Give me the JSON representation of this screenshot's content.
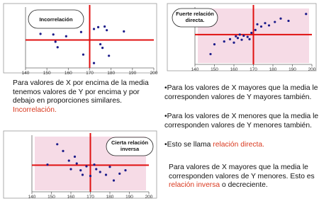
{
  "chart_data": [
    {
      "type": "scatter",
      "label": "Incorrelación",
      "xlim": [
        140,
        200
      ],
      "ylim": [
        0,
        100
      ],
      "xticks": [
        140,
        150,
        160,
        170,
        180,
        190,
        200
      ],
      "vline": 170,
      "hline": 46,
      "color": "#1c1c8a",
      "x": [
        147,
        153,
        154,
        155,
        159,
        166,
        172,
        174,
        177,
        178,
        175,
        176,
        179,
        167,
        172,
        186
      ],
      "y": [
        56,
        55,
        43,
        34,
        52,
        59,
        64,
        67,
        68,
        62,
        39,
        33,
        20,
        22,
        8,
        60
      ]
    },
    {
      "type": "scatter",
      "label": "Fuerte relación directa.",
      "xlim": [
        140,
        200
      ],
      "ylim": [
        0,
        100
      ],
      "xticks": [
        140,
        150,
        160,
        170,
        180,
        190,
        200
      ],
      "vline": 170,
      "hline": 52,
      "color": "#1c1c8a",
      "x": [
        148,
        150,
        155,
        158,
        160,
        161,
        162,
        163,
        164,
        165,
        167,
        168,
        169,
        171,
        172,
        174,
        176,
        178,
        181,
        184,
        188,
        197
      ],
      "y": [
        18,
        35,
        40,
        44,
        38,
        49,
        46,
        52,
        43,
        50,
        48,
        44,
        55,
        60,
        70,
        66,
        72,
        68,
        74,
        80,
        76,
        88
      ]
    },
    {
      "type": "scatter",
      "label": "Cierta relación inversa",
      "xlim": [
        140,
        200
      ],
      "ylim": [
        0,
        100
      ],
      "xticks": [
        140,
        150,
        160,
        170,
        180,
        190,
        200
      ],
      "vline": 170,
      "hline": 47,
      "color": "#1c1c8a",
      "x": [
        148,
        153,
        156,
        159,
        160,
        162,
        163,
        165,
        166,
        168,
        170,
        172,
        173,
        175,
        178,
        180,
        182,
        185,
        188
      ],
      "y": [
        48,
        84,
        72,
        55,
        40,
        62,
        50,
        38,
        30,
        45,
        28,
        48,
        40,
        35,
        30,
        44,
        20,
        32,
        38
      ]
    }
  ],
  "texts": {
    "left": {
      "body": "Para valores de X por encima de la media tenemos valores de Y por encima y por debajo en proporciones similares.",
      "highlight": "Incorrelación."
    },
    "right": [
      {
        "body": "•Para los valores de X mayores que la media le corresponden valores de Y mayores también."
      },
      {
        "body": "•Para los valores de X menores que la media le corresponden valores de Y menores también."
      },
      {
        "body": "•Esto se llama",
        "highlight": "relación directa."
      },
      {
        "body": "Para valores de X mayores que la media le corresponden valores de Y menores. Esto es",
        "highlight": "relación inversa",
        "tail": "o decreciente."
      }
    ]
  }
}
